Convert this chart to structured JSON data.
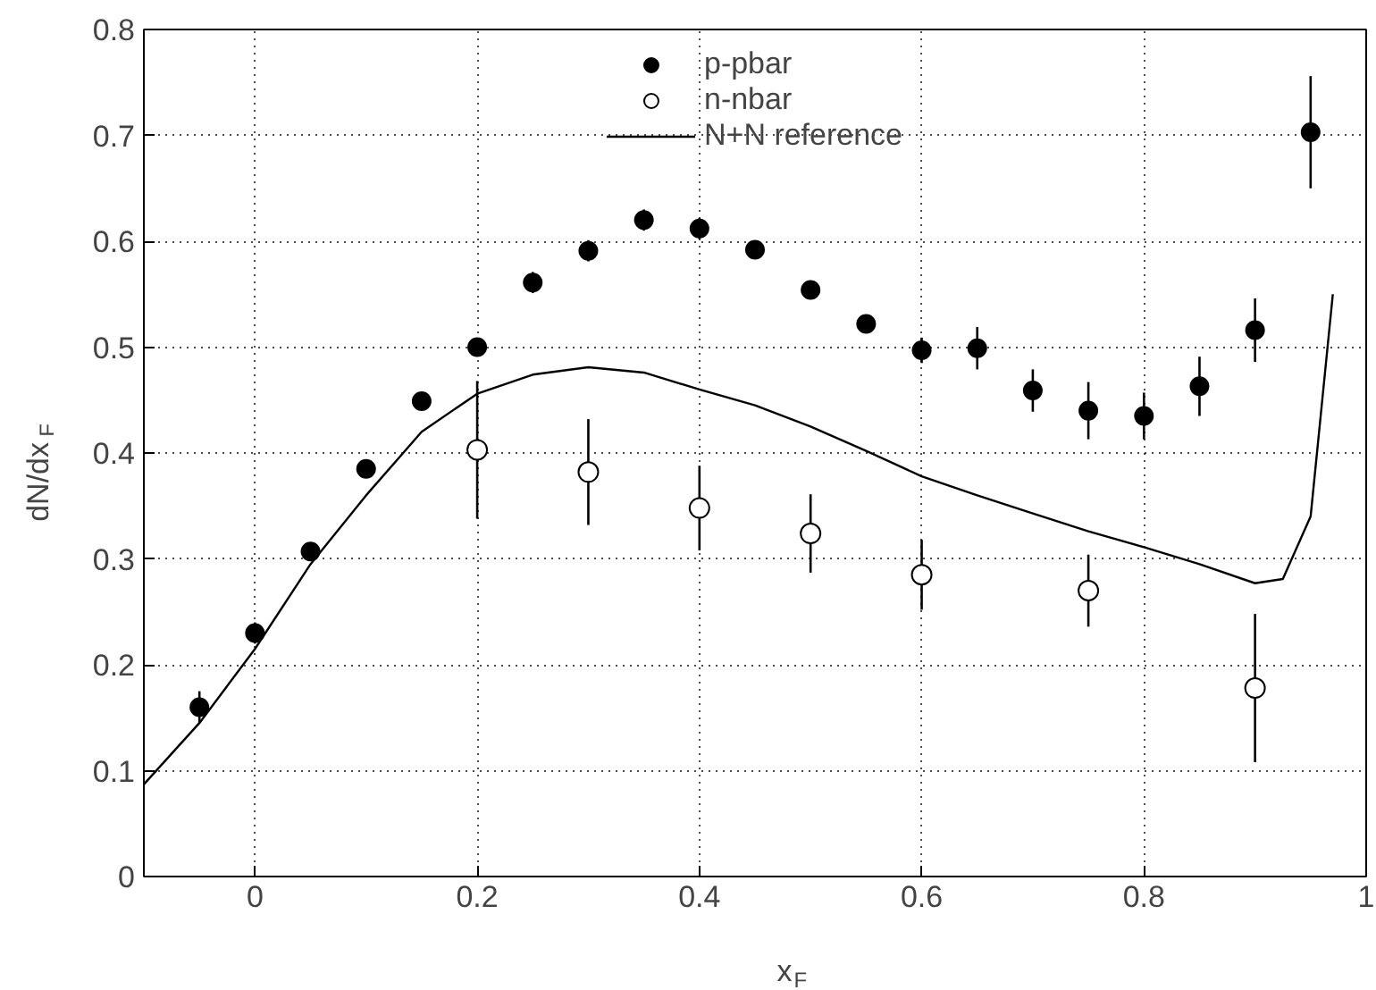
{
  "chart_data": {
    "type": "line",
    "xlabel": "x$_{F}$",
    "ylabel": "dN/dx$_{F}$",
    "xlim": [
      -0.1,
      1.0
    ],
    "ylim": [
      0,
      0.8
    ],
    "xticks": [
      0,
      0.2,
      0.4,
      0.6,
      0.8,
      1
    ],
    "yticks": [
      0,
      0.1,
      0.2,
      0.3,
      0.4,
      0.5,
      0.6,
      0.7,
      0.8
    ],
    "grid": true,
    "legend": "top",
    "marker": "circle",
    "series": [
      {
        "name": "p-pbar",
        "type": "scatter",
        "color": "#000000",
        "x": [
          -0.05,
          0,
          0.05,
          0.1,
          0.15,
          0.2,
          0.25,
          0.3,
          0.35,
          0.4,
          0.45,
          0.5,
          0.55,
          0.6,
          0.65,
          0.7,
          0.75,
          0.8,
          0.85,
          0.9,
          0.95
        ],
        "values": [
          0.16,
          0.23,
          0.307,
          0.385,
          0.449,
          0.5,
          0.561,
          0.591,
          0.62,
          0.612,
          0.592,
          0.554,
          0.522,
          0.497,
          0.499,
          0.459,
          0.44,
          0.435,
          0.463,
          0.516,
          0.703
        ],
        "errors": [
          0.015,
          0.01,
          0.008,
          0.008,
          0.008,
          0.008,
          0.01,
          0.01,
          0.01,
          0.01,
          0.008,
          0.008,
          0.008,
          0.012,
          0.02,
          0.02,
          0.027,
          0.022,
          0.028,
          0.03,
          0.053
        ]
      },
      {
        "name": "n-nbar",
        "type": "scatter",
        "color": "#000000",
        "x": [
          0.2,
          0.3,
          0.4,
          0.5,
          0.6,
          0.75,
          0.9
        ],
        "values": [
          0.403,
          0.382,
          0.348,
          0.324,
          0.285,
          0.27,
          0.178
        ],
        "errors": [
          0.065,
          0.05,
          0.04,
          0.037,
          0.033,
          0.034,
          0.07
        ]
      },
      {
        "name": "N+N reference",
        "color": "#000000",
        "marker": "none",
        "x": [
          -0.1,
          -0.05,
          0,
          0.05,
          0.1,
          0.15,
          0.2,
          0.25,
          0.3,
          0.35,
          0.4,
          0.45,
          0.5,
          0.55,
          0.6,
          0.65,
          0.7,
          0.75,
          0.8,
          0.85,
          0.9,
          0.925,
          0.95,
          0.97
        ],
        "values": [
          0.087,
          0.145,
          0.215,
          0.295,
          0.36,
          0.42,
          0.456,
          0.474,
          0.481,
          0.476,
          0.46,
          0.445,
          0.425,
          0.402,
          0.378,
          0.36,
          0.343,
          0.326,
          0.311,
          0.295,
          0.277,
          0.281,
          0.34,
          0.55
        ]
      }
    ]
  }
}
